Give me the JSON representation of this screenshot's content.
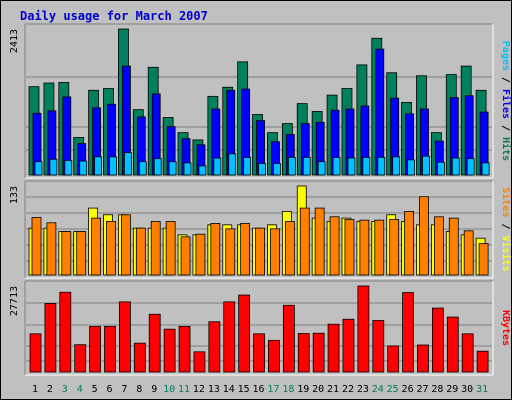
{
  "page_title": "Daily usage for March 2007",
  "colors": {
    "hits": "#00805c",
    "files": "#0000ff",
    "pages": "#00c0ff",
    "visits": "#ffff00",
    "sites": "#ff8000",
    "kbytes": "#ff0000",
    "weekend_label": "#007f5f"
  },
  "chart_data": [
    {
      "type": "bar",
      "panel": "hits-files-pages",
      "categories": [
        "1",
        "2",
        "3",
        "4",
        "5",
        "6",
        "7",
        "8",
        "9",
        "10",
        "11",
        "12",
        "13",
        "14",
        "15",
        "16",
        "17",
        "18",
        "19",
        "20",
        "21",
        "22",
        "23",
        "24",
        "25",
        "26",
        "27",
        "28",
        "29",
        "30",
        "31"
      ],
      "weekend_days": [
        "3",
        "4",
        "10",
        "11",
        "17",
        "18",
        "24",
        "25",
        "31"
      ],
      "ymax_label": "2413",
      "ylim": [
        0,
        2413
      ],
      "axis_label_parts": [
        "Pages",
        "Files",
        "Hits"
      ],
      "series": [
        {
          "name": "Hits",
          "values": [
            1460,
            1520,
            1530,
            620,
            1400,
            1430,
            2413,
            1080,
            1780,
            950,
            700,
            580,
            1300,
            1450,
            1870,
            1000,
            700,
            850,
            1180,
            1050,
            1320,
            1430,
            1820,
            2260,
            1690,
            1200,
            1640,
            700,
            1660,
            1800,
            1400
          ]
        },
        {
          "name": "Files",
          "values": [
            1020,
            1060,
            1290,
            520,
            1110,
            1170,
            1800,
            960,
            1340,
            800,
            600,
            500,
            1090,
            1400,
            1420,
            900,
            550,
            670,
            850,
            870,
            1070,
            1090,
            1140,
            2080,
            1270,
            1010,
            1090,
            560,
            1280,
            1310,
            1040
          ]
        },
        {
          "name": "Pages",
          "values": [
            220,
            260,
            240,
            230,
            300,
            300,
            370,
            220,
            270,
            220,
            200,
            150,
            280,
            350,
            290,
            190,
            190,
            290,
            290,
            220,
            290,
            280,
            290,
            290,
            300,
            250,
            310,
            210,
            280,
            270,
            200
          ]
        }
      ]
    },
    {
      "type": "bar",
      "panel": "visits-sites",
      "categories": [
        "1",
        "2",
        "3",
        "4",
        "5",
        "6",
        "7",
        "8",
        "9",
        "10",
        "11",
        "12",
        "13",
        "14",
        "15",
        "16",
        "17",
        "18",
        "19",
        "20",
        "21",
        "22",
        "23",
        "24",
        "25",
        "26",
        "27",
        "28",
        "29",
        "30",
        "31"
      ],
      "ymax_label": "133",
      "ylim": [
        0,
        133
      ],
      "axis_label_parts": [
        "Sites",
        "Visits"
      ],
      "series": [
        {
          "name": "Visits",
          "values": [
            70,
            70,
            65,
            65,
            100,
            90,
            90,
            70,
            70,
            70,
            60,
            60,
            75,
            75,
            75,
            70,
            75,
            95,
            133,
            85,
            80,
            85,
            80,
            80,
            90,
            80,
            75,
            75,
            65,
            60,
            55
          ]
        },
        {
          "name": "Sites",
          "values": [
            86,
            78,
            65,
            65,
            85,
            80,
            90,
            70,
            80,
            80,
            57,
            61,
            77,
            69,
            77,
            70,
            69,
            80,
            100,
            100,
            87,
            83,
            82,
            82,
            83,
            95,
            117,
            87,
            85,
            66,
            47
          ]
        }
      ]
    },
    {
      "type": "bar",
      "panel": "kbytes",
      "categories": [
        "1",
        "2",
        "3",
        "4",
        "5",
        "6",
        "7",
        "8",
        "9",
        "10",
        "11",
        "12",
        "13",
        "14",
        "15",
        "16",
        "17",
        "18",
        "19",
        "20",
        "21",
        "22",
        "23",
        "24",
        "25",
        "26",
        "27",
        "28",
        "29",
        "30",
        "31"
      ],
      "ymax_label": "27713",
      "ylim": [
        0,
        27713
      ],
      "axis_label_parts": [
        "KBytes"
      ],
      "series": [
        {
          "name": "KBytes",
          "values": [
            12300,
            22100,
            25700,
            8800,
            14700,
            14700,
            22600,
            9300,
            18600,
            13800,
            14700,
            6500,
            16200,
            22600,
            24800,
            12300,
            10200,
            21500,
            12400,
            12500,
            15400,
            17000,
            27713,
            16600,
            8400,
            25600,
            8700,
            20600,
            17700,
            12300,
            6700
          ]
        }
      ]
    }
  ]
}
